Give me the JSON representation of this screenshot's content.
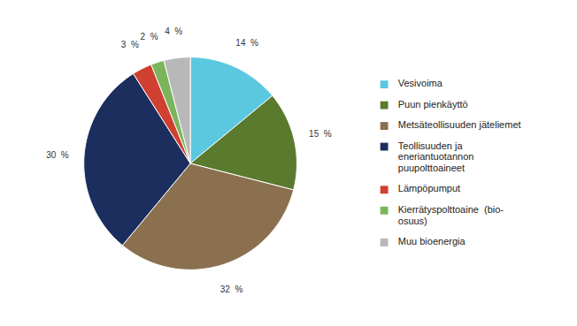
{
  "chart_data": {
    "type": "pie",
    "categories": [
      "Vesivoima",
      "Puun pienkäyttö",
      "Metsäteollisuuden jäteliemet",
      "Teollisuuden ja\neneriantuotannon\npuupolttoaineet",
      "Lämpöpumput",
      "Kierrätyspolttoaine  (bio-\nosuus)",
      "Muu bioenergia"
    ],
    "values": [
      14,
      15,
      32,
      30,
      3,
      2,
      4
    ],
    "value_labels": [
      "14  %",
      "15  %",
      "32  %",
      "30  %",
      "3  %",
      "2  %",
      "4  %"
    ],
    "colors": [
      "#5bc8e0",
      "#5a7a2e",
      "#8b7050",
      "#1b2e5e",
      "#d04030",
      "#7ab55c",
      "#b8b8b8"
    ],
    "data_labels": true,
    "legend": "right"
  }
}
